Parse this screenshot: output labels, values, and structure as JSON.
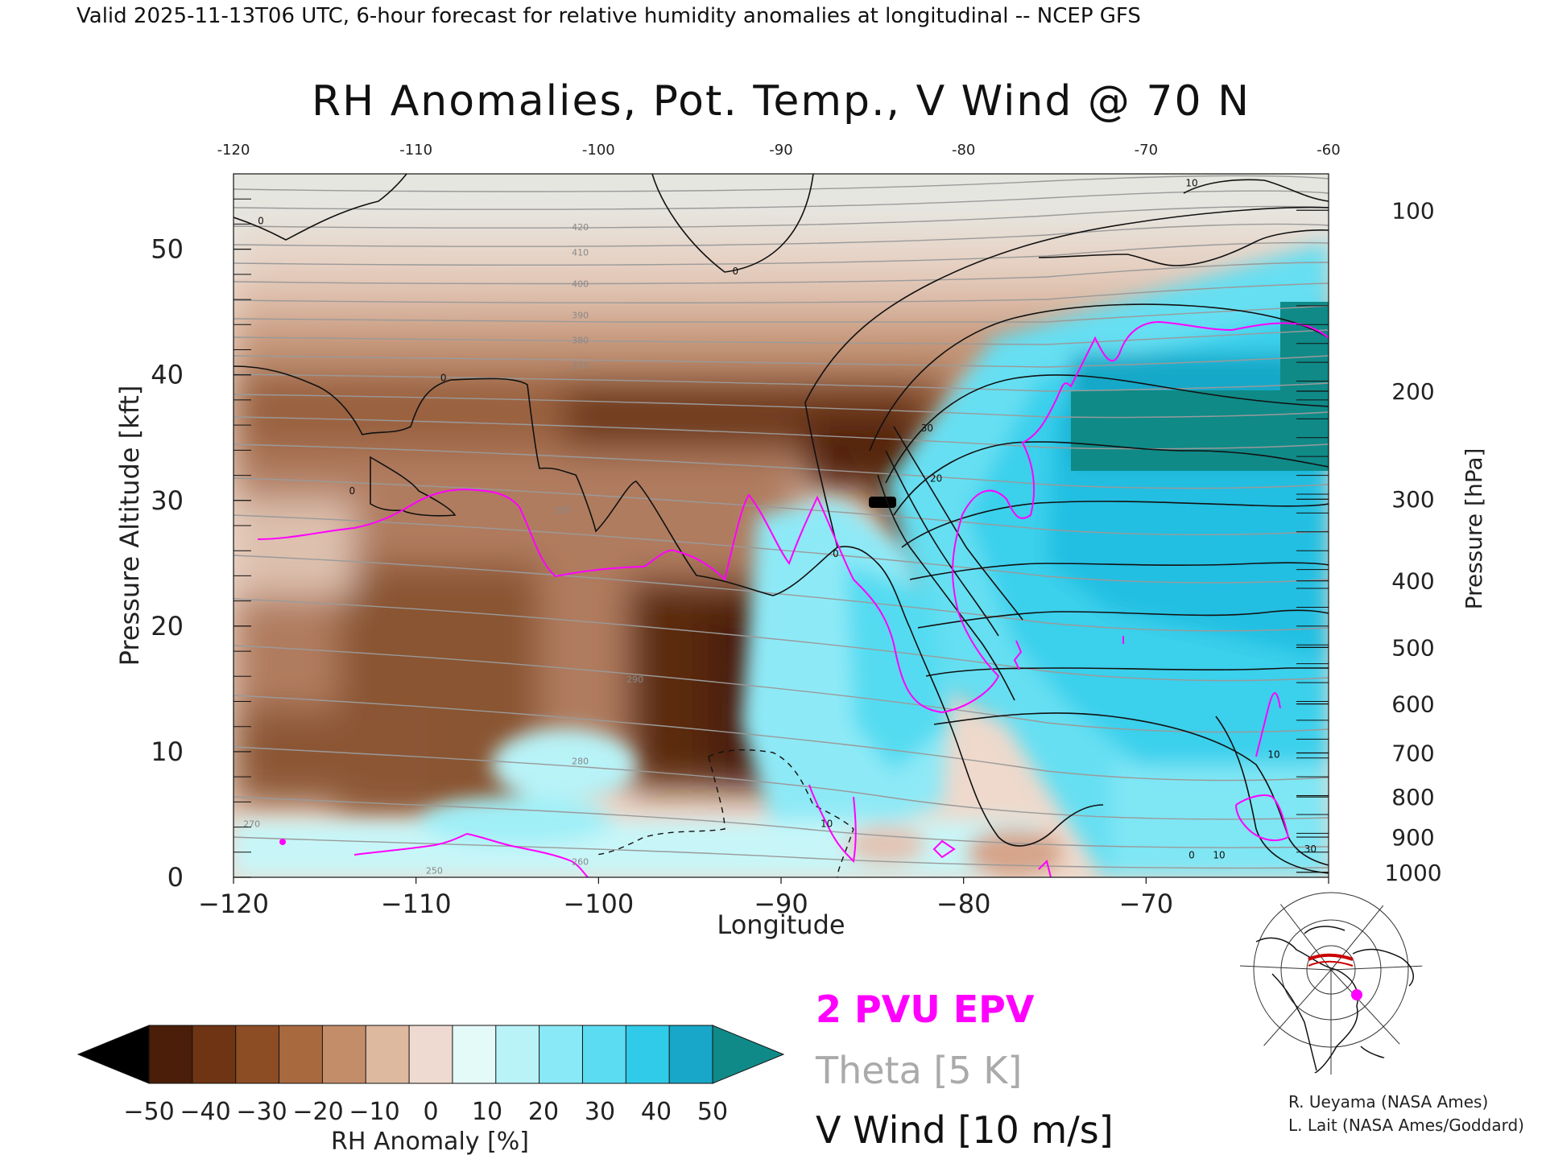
{
  "header": {
    "top_caption": "Valid 2025-11-13T06 UTC, 6-hour forecast for relative humidity anomalies at longitudinal -- NCEP GFS",
    "title": "RH Anomalies, Pot. Temp., V Wind @ 70 N"
  },
  "chart_data": {
    "type": "heatmap",
    "title": "RH Anomalies, Pot. Temp., V Wind @ 70 N",
    "xlabel": "Longitude",
    "ylabel": "Pressure Altitude [kft]",
    "y2label": "Pressure [hPa]",
    "xlim": [
      -120,
      -60
    ],
    "ylim": [
      0,
      56
    ],
    "x_ticks": [
      -120,
      -110,
      -100,
      -90,
      -80,
      -70,
      -60
    ],
    "x_tick_labels": [
      "−120",
      "−110",
      "−100",
      "−90",
      "−80",
      "−70",
      "−60"
    ],
    "top_x_tick_labels": [
      "-120",
      "-110",
      "-100",
      "-90",
      "-80",
      "-70",
      "-60"
    ],
    "y_ticks": [
      0,
      10,
      20,
      30,
      40,
      50
    ],
    "y_tick_labels": [
      "0",
      "10",
      "20",
      "30",
      "40",
      "50"
    ],
    "pressure_ticks": [
      {
        "hpa": 100,
        "kft": 53.1
      },
      {
        "hpa": 200,
        "kft": 38.7
      },
      {
        "hpa": 300,
        "kft": 30.1
      },
      {
        "hpa": 400,
        "kft": 23.6
      },
      {
        "hpa": 500,
        "kft": 18.3
      },
      {
        "hpa": 600,
        "kft": 13.8
      },
      {
        "hpa": 700,
        "kft": 9.9
      },
      {
        "hpa": 800,
        "kft": 6.4
      },
      {
        "hpa": 900,
        "kft": 3.2
      },
      {
        "hpa": 1000,
        "kft": 0.4
      }
    ],
    "theta_contour_labels": [
      {
        "text": "420",
        "x": -101,
        "y": 51.5
      },
      {
        "text": "410",
        "x": -101,
        "y": 49.5
      },
      {
        "text": "400",
        "x": -101,
        "y": 47.0
      },
      {
        "text": "390",
        "x": -101,
        "y": 44.5
      },
      {
        "text": "380",
        "x": -101,
        "y": 42.5
      },
      {
        "text": "370",
        "x": -101,
        "y": 40.5
      },
      {
        "text": "300",
        "x": -102,
        "y": 29.0
      },
      {
        "text": "290",
        "x": -98,
        "y": 15.5
      },
      {
        "text": "280",
        "x": -101,
        "y": 9.0
      },
      {
        "text": "270",
        "x": -119,
        "y": 4.0
      },
      {
        "text": "260",
        "x": -101,
        "y": 1.0
      },
      {
        "text": "250",
        "x": -109,
        "y": 0.3
      }
    ],
    "vwind_contour_labels": [
      {
        "text": "0",
        "x": -118.5,
        "y": 52.0
      },
      {
        "text": "0",
        "x": -92.5,
        "y": 48.0
      },
      {
        "text": "0",
        "x": -108.5,
        "y": 39.5
      },
      {
        "text": "0",
        "x": -113.5,
        "y": 30.5
      },
      {
        "text": "0",
        "x": -87.0,
        "y": 25.5
      },
      {
        "text": "10",
        "x": -67.5,
        "y": 55.0
      },
      {
        "text": "30",
        "x": -82.0,
        "y": 35.5
      },
      {
        "text": "20",
        "x": -81.5,
        "y": 31.5
      },
      {
        "text": "10",
        "x": -87.5,
        "y": 4.0
      },
      {
        "text": "10",
        "x": -63.0,
        "y": 9.5
      },
      {
        "text": "10",
        "x": -66.0,
        "y": 1.5
      },
      {
        "text": "30",
        "x": -61.0,
        "y": 2.0
      },
      {
        "text": "0",
        "x": -67.5,
        "y": 1.5
      }
    ],
    "fields": [
      {
        "name": "RH Anomaly",
        "kind": "filled",
        "units": "%"
      },
      {
        "name": "2 PVU EPV",
        "kind": "contour",
        "color": "#ff00ff"
      },
      {
        "name": "Theta [5 K]",
        "kind": "contour",
        "color": "#999999",
        "interval": 5
      },
      {
        "name": "V Wind [10 m/s]",
        "kind": "contour",
        "color": "#000000",
        "interval": 10
      }
    ],
    "colorbar": {
      "label": "RH Anomaly [%]",
      "ticks": [
        "−50",
        "−40",
        "−30",
        "−20",
        "−10",
        "0",
        "10",
        "20",
        "30",
        "40",
        "50"
      ],
      "colors": [
        "#000000",
        "#4a1e08",
        "#6e3413",
        "#8c4c24",
        "#a8693f",
        "#c48d69",
        "#ddb9a0",
        "#eedad0",
        "#e4faf8",
        "#b9f3f8",
        "#8ae9f6",
        "#5cdcf2",
        "#30cbe8",
        "#18a7c8",
        "#108a88"
      ]
    }
  },
  "legend": {
    "epv": "2 PVU EPV",
    "theta": "Theta [5 K]",
    "vwind": "V Wind [10 m/s]",
    "epv_color": "#ff00ff",
    "theta_color": "#aaaaaa",
    "vwind_color": "#111111"
  },
  "credits": {
    "line1": "R. Ueyama (NASA Ames)",
    "line2": "L. Lait (NASA Ames/Goddard)"
  },
  "map_inset": {
    "marker_color": "#ff00ff",
    "section_color": "#cc0000"
  }
}
